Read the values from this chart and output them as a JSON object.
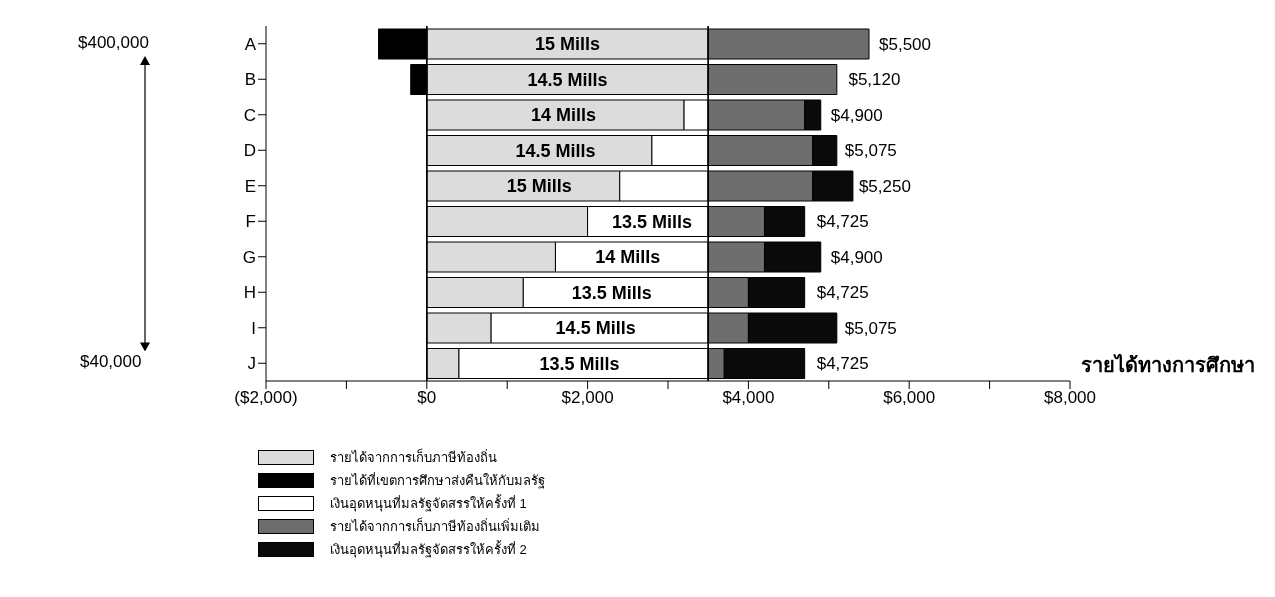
{
  "chart_data": {
    "type": "bar",
    "orientation": "horizontal",
    "stacked": true,
    "xlabel": "รายได้ทางการศึกษา",
    "categories": [
      "A",
      "B",
      "C",
      "D",
      "E",
      "F",
      "G",
      "H",
      "I",
      "J"
    ],
    "series": [
      {
        "name": "รายได้จากการเก็บภาษีท้องถิ่น",
        "color": "#dcdcdc",
        "values": [
          3500,
          3500,
          3200,
          2800,
          2400,
          2000,
          1600,
          1200,
          800,
          400
        ]
      },
      {
        "name": "รายได้ที่เขตการศึกษาส่งคืนให้กับมลรัฐ",
        "color": "#000000",
        "values": [
          -600,
          -200,
          0,
          0,
          0,
          0,
          0,
          0,
          0,
          0
        ]
      },
      {
        "name": "เงินอุดหนุนที่มลรัฐจัดสรรให้ครั้งที่ 1",
        "color": "#ffffff",
        "values": [
          0,
          0,
          300,
          700,
          1100,
          1500,
          1900,
          2300,
          2700,
          3100
        ]
      },
      {
        "name": "รายได้จากการเก็บภาษีท้องถิ่นเพิ่มเติม",
        "color": "#6e6e6e",
        "values": [
          2000,
          1600,
          1200,
          1300,
          1300,
          700,
          700,
          500,
          500,
          200
        ]
      },
      {
        "name": "เงินอุดหนุนที่มลรัฐจัดสรรให้ครั้งที่ 2",
        "color": "#0a0a0a",
        "values": [
          0,
          0,
          200,
          300,
          500,
          500,
          700,
          700,
          1100,
          1000
        ]
      }
    ],
    "xlim": [
      -2000,
      8000
    ],
    "xticks": [
      {
        "value": -2000,
        "label": "($2,000)"
      },
      {
        "value": -1000,
        "label": null
      },
      {
        "value": 0,
        "label": "$0"
      },
      {
        "value": 1000,
        "label": null
      },
      {
        "value": 2000,
        "label": "$2,000"
      },
      {
        "value": 3000,
        "label": null
      },
      {
        "value": 4000,
        "label": "$4,000"
      },
      {
        "value": 5000,
        "label": null
      },
      {
        "value": 6000,
        "label": "$6,000"
      },
      {
        "value": 7000,
        "label": null
      },
      {
        "value": 8000,
        "label": "$8,000"
      }
    ],
    "ref_lines": [
      {
        "axis": "x",
        "value": 0,
        "color": "#000000"
      },
      {
        "axis": "x",
        "value": 3500,
        "color": "#000000"
      }
    ],
    "annotations": [
      "$400,000",
      "$40,000",
      {
        "text": "15 Mills",
        "x": 1750,
        "y": "A"
      },
      {
        "text": "14.5 Mills",
        "x": 1750,
        "y": "B"
      },
      {
        "text": "14 Mills",
        "x": 1700,
        "y": "C"
      },
      {
        "text": "14.5 Mills",
        "x": 1600,
        "y": "D"
      },
      {
        "text": "15 Mills",
        "x": 1400,
        "y": "E"
      },
      {
        "text": "13.5 Mills",
        "x": 2800,
        "y": "F"
      },
      {
        "text": "14 Mills",
        "x": 2500,
        "y": "G"
      },
      {
        "text": "13.5 Mills",
        "x": 2300,
        "y": "H"
      },
      {
        "text": "14.5 Mills",
        "x": 2100,
        "y": "I"
      },
      {
        "text": "13.5 Mills",
        "x": 1900,
        "y": "J"
      },
      {
        "text": "$5,500",
        "x": 5500,
        "y": "A"
      },
      {
        "text": "$5,120",
        "x": 5120,
        "y": "B"
      },
      {
        "text": "$4,900",
        "x": 4900,
        "y": "C"
      },
      {
        "text": "$5,075",
        "x": 5075,
        "y": "D"
      },
      {
        "text": "$5,250",
        "x": 5250,
        "y": "E"
      },
      {
        "text": "$4,725",
        "x": 4725,
        "y": "F"
      },
      {
        "text": "$4,900",
        "x": 4900,
        "y": "G"
      },
      {
        "text": "$4,725",
        "x": 4725,
        "y": "H"
      },
      {
        "text": "$5,075",
        "x": 5075,
        "y": "I"
      },
      {
        "text": "$4,725",
        "x": 4725,
        "y": "J"
      }
    ],
    "legend": "bottom"
  }
}
